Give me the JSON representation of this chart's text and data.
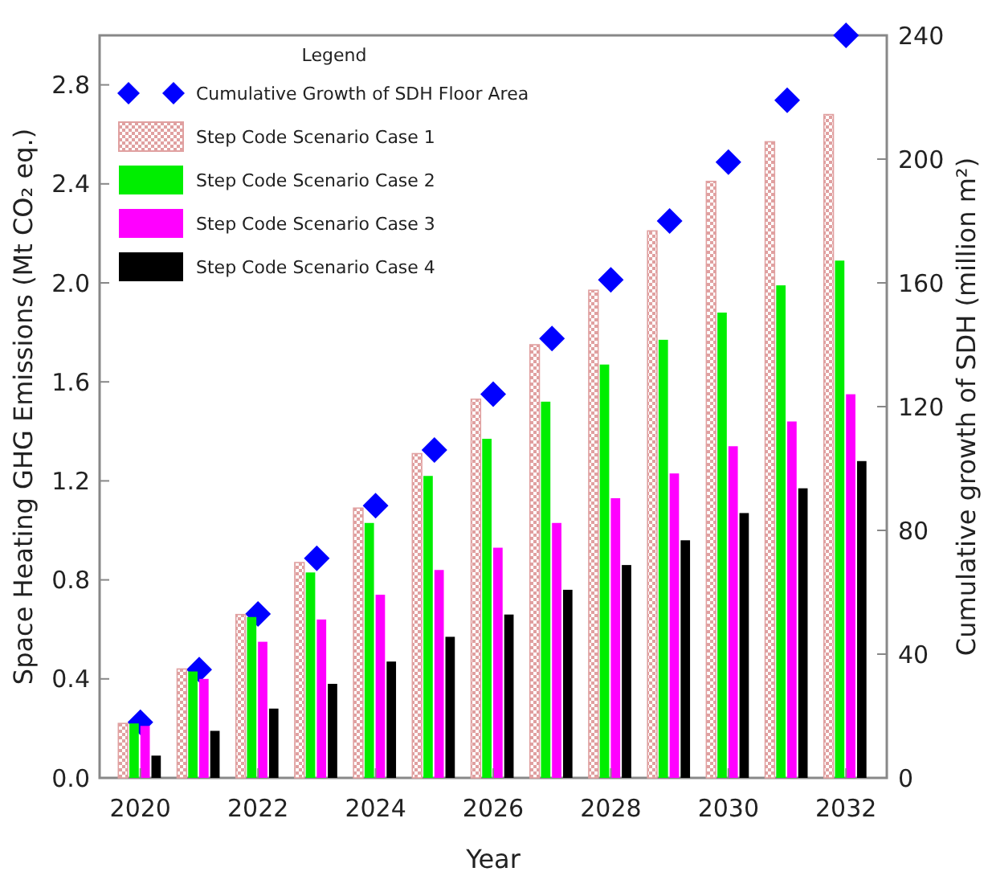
{
  "chart_data": {
    "type": "bar",
    "xlabel": "Year",
    "ylabel": "Space Heating GHG Emissions (Mt CO₂ eq.)",
    "y2label": "Cumulative growth of SDH (million m²)",
    "legend_title": "Legend",
    "legend": "top left",
    "categories": [
      "2020",
      null,
      "2022",
      null,
      "2024",
      null,
      "2026",
      null,
      "2028",
      null,
      "2030",
      null,
      "2032"
    ],
    "ylim": [
      0,
      3
    ],
    "yticks": [
      {
        "value": 0,
        "label": "0.0"
      },
      0.4,
      0.8,
      1.2,
      1.6,
      {
        "value": 2,
        "label": "2.0"
      },
      2.4,
      2.8
    ],
    "y2lim": [
      0,
      240
    ],
    "y2ticks": [
      0,
      40,
      80,
      120,
      160,
      200,
      240
    ],
    "series": [
      {
        "type": "scatter",
        "axis": "y2",
        "marker": "diamond",
        "name": "Cumulative Growth of SDH Floor Area",
        "color": "#0000ff",
        "values": [
          18,
          35,
          53,
          71,
          88,
          106,
          124,
          142,
          161,
          180,
          199,
          219,
          240
        ]
      },
      {
        "name": "Step Code Scenario Case 1",
        "color": "#e0a0a0",
        "values": [
          0.22,
          0.44,
          0.66,
          0.87,
          1.09,
          1.31,
          1.53,
          1.75,
          1.97,
          2.21,
          2.41,
          2.57,
          2.68
        ]
      },
      {
        "name": "Step Code Scenario Case 2",
        "color": "#00ee00",
        "values": [
          0.22,
          0.43,
          0.65,
          0.83,
          1.03,
          1.22,
          1.37,
          1.52,
          1.67,
          1.77,
          1.88,
          1.99,
          2.09
        ]
      },
      {
        "name": "Step Code Scenario Case 3",
        "color": "#ff00ff",
        "values": [
          0.21,
          0.4,
          0.55,
          0.64,
          0.74,
          0.84,
          0.93,
          1.03,
          1.13,
          1.23,
          1.34,
          1.44,
          1.55
        ]
      },
      {
        "name": "Step Code Scenario Case 4",
        "color": "#000000",
        "values": [
          0.09,
          0.19,
          0.28,
          0.38,
          0.47,
          0.57,
          0.66,
          0.76,
          0.86,
          0.96,
          1.07,
          1.17,
          1.28
        ]
      }
    ]
  }
}
